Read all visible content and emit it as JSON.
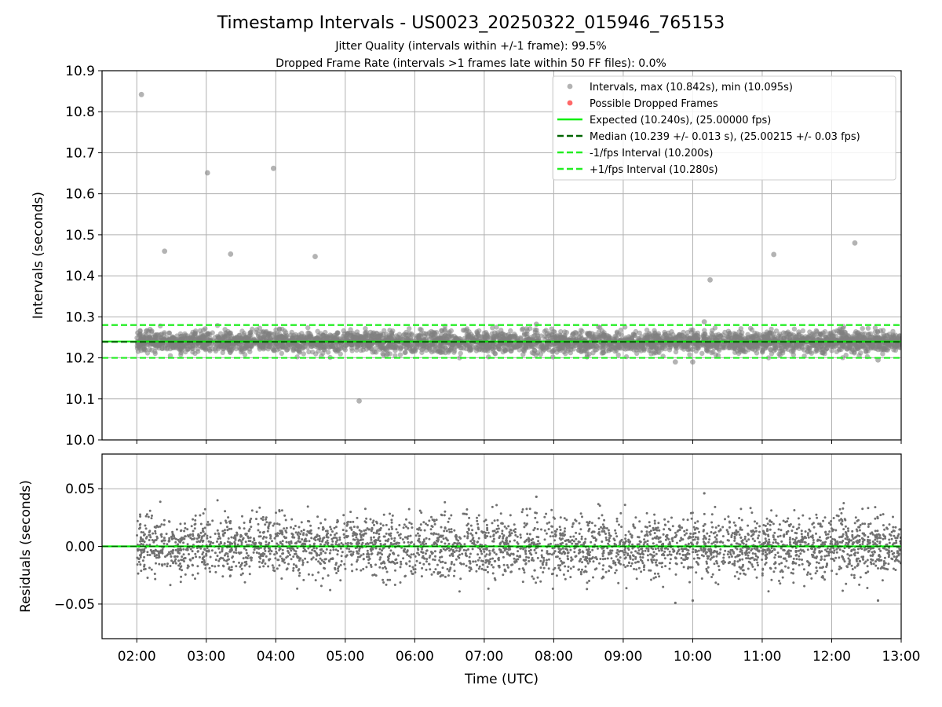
{
  "title": "Timestamp Intervals - US0023_20250322_015946_765153",
  "subtitle_line1": "Jitter Quality (intervals within +/-1 frame): 99.5%",
  "subtitle_line2": "Dropped Frame Rate (intervals >1 frames late within 50 FF files): 0.0%",
  "chart_data": [
    {
      "type": "scatter",
      "panel": "top",
      "ylabel": "Intervals (seconds)",
      "xlim": [
        "01:30",
        "13:00"
      ],
      "ylim": [
        10.0,
        10.9
      ],
      "yticks": [
        "10.0",
        "10.1",
        "10.2",
        "10.3",
        "10.4",
        "10.5",
        "10.6",
        "10.7",
        "10.8",
        "10.9"
      ],
      "grid": true,
      "legend_position": "top-right",
      "legend": [
        "Intervals, max (10.842s), min (10.095s)",
        "Possible Dropped Frames",
        "Expected (10.240s), (25.00000 fps)",
        "Median (10.239 +/- 0.013 s), (25.00215 +/- 0.03 fps)",
        "-1/fps Interval (10.200s)",
        "+1/fps Interval (10.280s)"
      ],
      "reference_lines": {
        "expected": 10.24,
        "median": 10.239,
        "minus_1fps": 10.2,
        "plus_1fps": 10.28
      },
      "band": {
        "x_start": "02:00",
        "x_end": "13:00",
        "center": 10.239,
        "spread": 0.013
      },
      "outliers": [
        {
          "x": "02:04",
          "y": 10.842
        },
        {
          "x": "02:24",
          "y": 10.46
        },
        {
          "x": "03:01",
          "y": 10.651
        },
        {
          "x": "03:21",
          "y": 10.453
        },
        {
          "x": "03:58",
          "y": 10.662
        },
        {
          "x": "04:34",
          "y": 10.447
        },
        {
          "x": "05:12",
          "y": 10.095
        },
        {
          "x": "10:15",
          "y": 10.39
        },
        {
          "x": "11:10",
          "y": 10.452
        },
        {
          "x": "12:20",
          "y": 10.48
        },
        {
          "x": "09:45",
          "y": 10.19
        },
        {
          "x": "10:00",
          "y": 10.19
        },
        {
          "x": "10:10",
          "y": 10.288
        },
        {
          "x": "07:45",
          "y": 10.282
        },
        {
          "x": "12:40",
          "y": 10.195
        }
      ]
    },
    {
      "type": "scatter",
      "panel": "bottom",
      "xlabel": "Time (UTC)",
      "ylabel": "Residuals (seconds)",
      "xlim": [
        "01:30",
        "13:00"
      ],
      "ylim": [
        -0.08,
        0.08
      ],
      "yticks": [
        "−0.05",
        "0.00",
        "0.05"
      ],
      "xticks": [
        "02:00",
        "03:00",
        "04:00",
        "05:00",
        "06:00",
        "07:00",
        "08:00",
        "09:00",
        "10:00",
        "11:00",
        "12:00",
        "13:00"
      ],
      "grid": true,
      "zero_line": 0.0,
      "band": {
        "x_start": "02:00",
        "x_end": "13:00",
        "center": 0.0,
        "spread": 0.013
      },
      "outliers": [
        {
          "x": "09:45",
          "y": -0.049
        },
        {
          "x": "10:00",
          "y": -0.047
        },
        {
          "x": "10:10",
          "y": 0.046
        },
        {
          "x": "12:40",
          "y": -0.047
        },
        {
          "x": "07:45",
          "y": 0.043
        }
      ]
    }
  ],
  "colors": {
    "interval_points": "#808080",
    "dropped_frames": "#ff4d4d",
    "expected": "#00ee00",
    "median": "#006400",
    "fps_band": "#22ee22",
    "grid": "#b0b0b0"
  }
}
